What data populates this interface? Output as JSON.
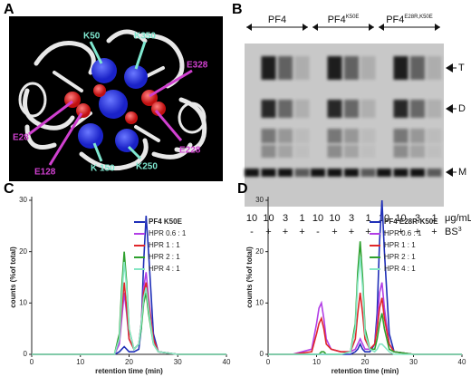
{
  "panel_a": {
    "label": "A",
    "residues": [
      "K50",
      "K350",
      "E328",
      "E28",
      "E228",
      "E128",
      "K 150",
      "K250"
    ]
  },
  "panel_b": {
    "label": "B",
    "groups": [
      {
        "name": "PF4",
        "conc": [
          10,
          10,
          3,
          1
        ],
        "crosslinker": [
          "-",
          "+",
          "+",
          "+"
        ]
      },
      {
        "name": "PF4",
        "sup": "K50E",
        "conc": [
          10,
          10,
          3,
          1
        ],
        "crosslinker": [
          "-",
          "+",
          "+",
          "+"
        ]
      },
      {
        "name": "PF4",
        "sup": "E28R,K50E",
        "conc": [
          10,
          10,
          3,
          1
        ],
        "crosslinker": [
          "-",
          "+",
          "+",
          "+"
        ]
      }
    ],
    "bands": [
      "T",
      "D",
      "M"
    ],
    "unit": "μg/mL",
    "reagent": "BS",
    "reagent_sup": "3"
  },
  "chart_data": [
    {
      "type": "line",
      "panel": "C",
      "xlabel": "retention time (min)",
      "ylabel": "counts (%of total)",
      "xlim": [
        0,
        40
      ],
      "ylim": [
        0,
        30
      ],
      "xticks": [
        0,
        10,
        20,
        30,
        40
      ],
      "yticks": [
        0,
        10,
        20,
        30
      ],
      "x": [
        0,
        5,
        9,
        10,
        10.5,
        11,
        11.5,
        12,
        13,
        15,
        17,
        18,
        18.5,
        19,
        19.5,
        20,
        21,
        22,
        22.5,
        23,
        23.5,
        24,
        25,
        26,
        30,
        35,
        40
      ],
      "series": [
        {
          "name": "PF4 K50E",
          "color": "#1f2fb8",
          "values": [
            0,
            0,
            0,
            0,
            0,
            0,
            0,
            0,
            0,
            0,
            0,
            0.5,
            1,
            1.5,
            1,
            0.5,
            0.5,
            1,
            5,
            18,
            27,
            20,
            4,
            0.5,
            0,
            0,
            0
          ]
        },
        {
          "name": "HPR 0.6 : 1",
          "color": "#b23ee6",
          "values": [
            0,
            0,
            0,
            0,
            0,
            0,
            0,
            0,
            0,
            0,
            0,
            2,
            7,
            12,
            8,
            3,
            1,
            2,
            6,
            13,
            16,
            11,
            3,
            0.5,
            0,
            0,
            0
          ]
        },
        {
          "name": "HPR 1 : 1",
          "color": "#e0262a",
          "values": [
            0,
            0,
            0,
            0,
            0,
            0,
            0,
            0,
            0,
            0,
            0,
            3,
            9,
            14,
            9,
            3,
            1,
            2,
            6,
            12,
            14,
            10,
            3,
            0.5,
            0,
            0,
            0
          ]
        },
        {
          "name": "HPR 2 : 1",
          "color": "#2ea02e",
          "values": [
            0,
            0,
            0,
            0,
            0,
            0,
            0,
            0,
            0,
            0,
            0,
            4,
            13,
            20,
            14,
            5,
            1,
            2,
            5,
            10,
            12,
            8,
            2,
            0.5,
            0,
            0,
            0
          ]
        },
        {
          "name": "HPR 4 : 1",
          "color": "#86e6c4",
          "values": [
            0,
            0,
            0,
            0,
            0,
            0,
            0,
            0,
            0,
            0,
            0,
            3,
            11,
            18,
            13,
            5,
            1,
            2,
            6,
            11,
            13,
            9,
            2,
            0.5,
            0,
            0,
            0
          ]
        }
      ]
    },
    {
      "type": "line",
      "panel": "D",
      "xlabel": "retention time (min)",
      "ylabel": "counts (%of total)",
      "xlim": [
        0,
        40
      ],
      "ylim": [
        0,
        30
      ],
      "xticks": [
        0,
        10,
        20,
        30,
        40
      ],
      "yticks": [
        0,
        10,
        20,
        30
      ],
      "x": [
        0,
        5,
        9,
        10,
        10.5,
        11,
        11.5,
        12,
        13,
        15,
        17,
        18,
        18.5,
        19,
        19.5,
        20,
        21,
        22,
        22.5,
        23,
        23.5,
        24,
        25,
        26,
        30,
        35,
        40
      ],
      "series": [
        {
          "name": "PF4 E28R-K50E",
          "color": "#1f2fb8",
          "values": [
            0,
            0,
            0,
            0,
            0,
            0,
            0,
            0,
            0,
            0,
            0,
            0.5,
            1,
            2,
            1,
            0.5,
            0.5,
            2,
            8,
            22,
            30,
            20,
            4,
            0.5,
            0,
            0,
            0
          ]
        },
        {
          "name": "HPR 0.6 : 1",
          "color": "#b23ee6",
          "values": [
            0,
            0,
            1,
            6,
            9,
            10,
            7,
            3,
            1,
            0.5,
            0.5,
            1,
            2,
            3,
            2,
            1,
            1,
            2,
            6,
            12,
            14,
            9,
            2,
            0.5,
            0,
            0,
            0
          ]
        },
        {
          "name": "HPR 1 : 1",
          "color": "#e0262a",
          "values": [
            0,
            0,
            0.5,
            4,
            6,
            7,
            5,
            2,
            1,
            0.5,
            0.5,
            3,
            8,
            12,
            8,
            3,
            1,
            2,
            5,
            9,
            11,
            7,
            2,
            0.5,
            0,
            0,
            0
          ]
        },
        {
          "name": "HPR 2 : 1",
          "color": "#2ea02e",
          "values": [
            0,
            0,
            0,
            0,
            0,
            0.5,
            0.5,
            0,
            0,
            0,
            0.5,
            6,
            16,
            22,
            15,
            5,
            1,
            1,
            3,
            6,
            8,
            5,
            1,
            0.5,
            0,
            0,
            0
          ]
        },
        {
          "name": "HPR 4 : 1",
          "color": "#86e6c4",
          "values": [
            0,
            0,
            0,
            0,
            0,
            0,
            0,
            0,
            0,
            0,
            0.5,
            5,
            14,
            19,
            13,
            4,
            1,
            0.5,
            1,
            2,
            2,
            1.5,
            0.5,
            0,
            0,
            0,
            0
          ]
        }
      ]
    }
  ]
}
